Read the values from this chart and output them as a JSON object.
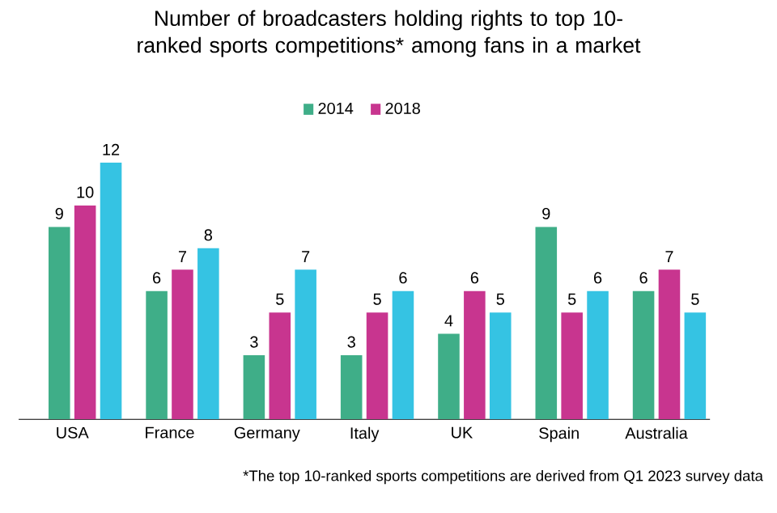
{
  "chart_data": {
    "type": "bar",
    "title": "Number of broadcasters holding rights to top 10-ranked sports competitions* among fans in a market",
    "categories": [
      "USA",
      "France",
      "Germany",
      "Italy",
      "UK",
      "Spain",
      "Australia"
    ],
    "series": [
      {
        "name": "2014",
        "color": "#3fae88",
        "values": [
          9,
          6,
          3,
          3,
          4,
          9,
          6
        ]
      },
      {
        "name": "2018",
        "color": "#c8358f",
        "values": [
          10,
          7,
          5,
          5,
          6,
          5,
          7
        ]
      },
      {
        "color": "#35c3e3",
        "values": [
          12,
          8,
          7,
          6,
          5,
          6,
          5
        ]
      }
    ],
    "data_labels": true,
    "legend": "top",
    "annotations": [
      "*The top 10-ranked sports competitions are derived from Q1 2023 survey data"
    ]
  }
}
